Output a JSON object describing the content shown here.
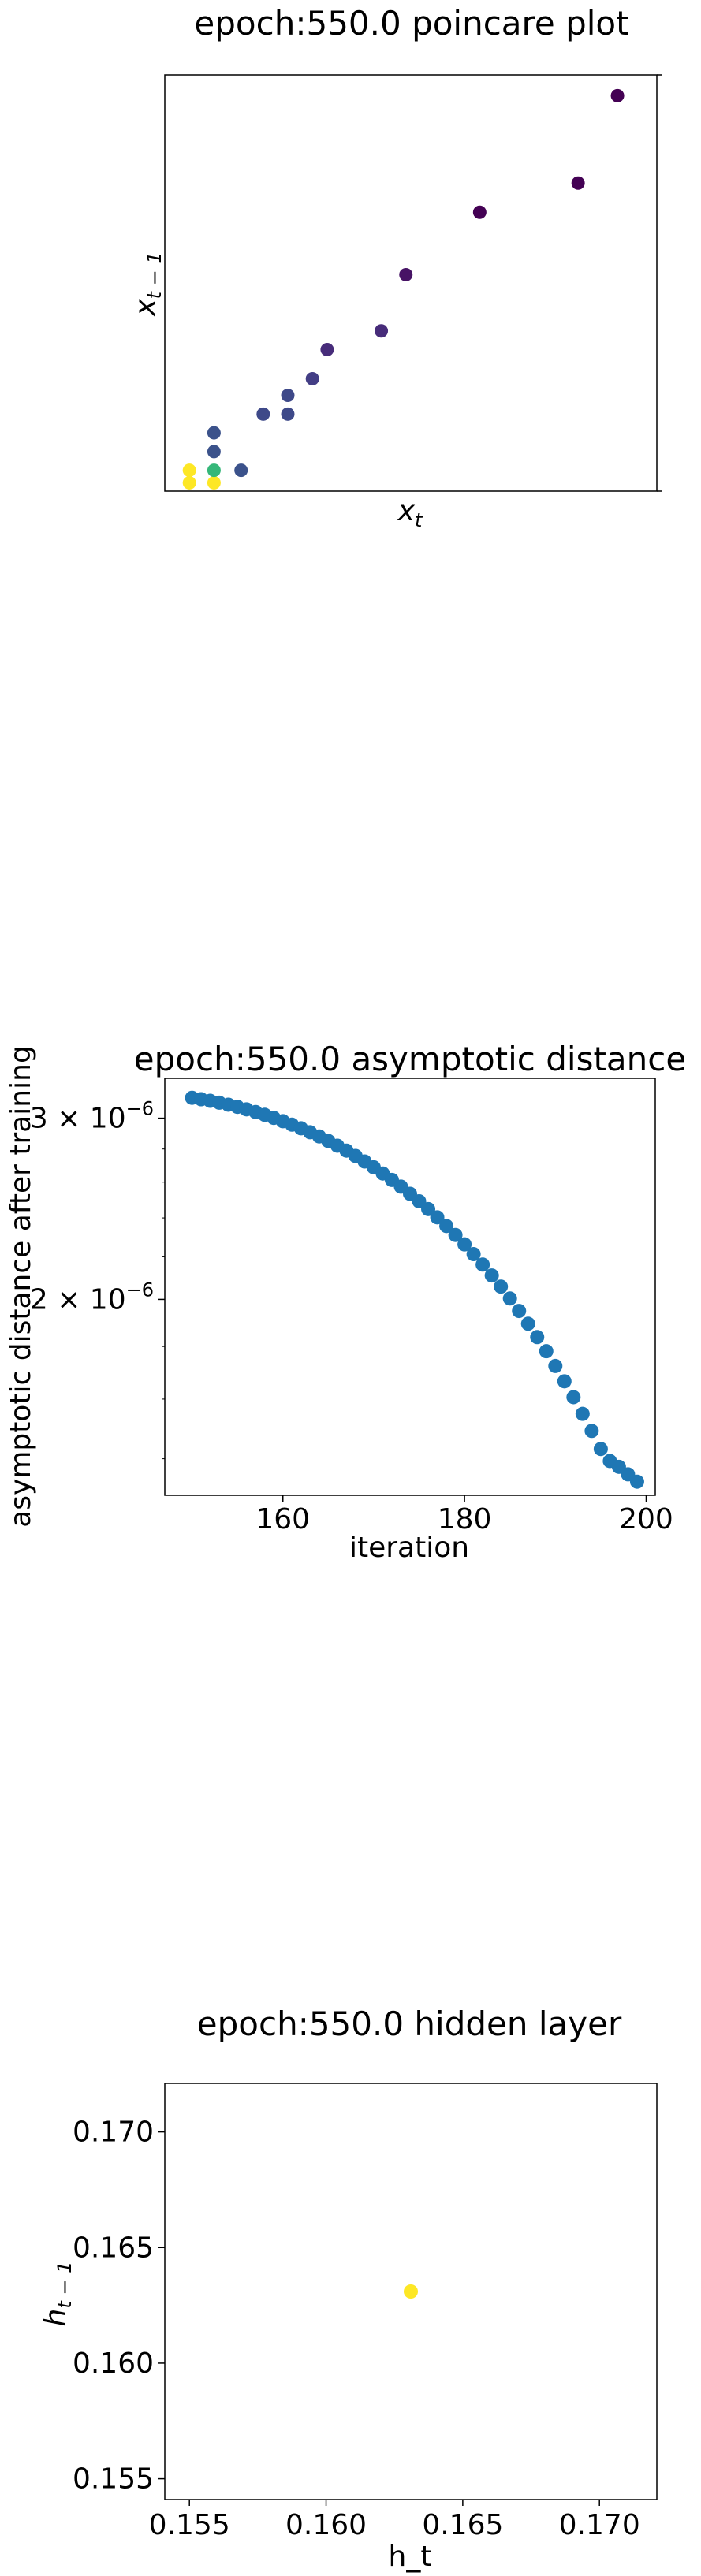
{
  "chart_data": [
    {
      "type": "scatter",
      "title": "epoch:550.0 poincare plot",
      "xlabel": "x_t",
      "ylabel": "x_{t-1}",
      "xticks_shown": false,
      "yticks_shown": false,
      "grid": false,
      "colormap": "viridis",
      "points": [
        {
          "x": 0.05,
          "y": 0.02,
          "color": "#fde725"
        },
        {
          "x": 0.05,
          "y": 0.05,
          "color": "#fde725"
        },
        {
          "x": 0.1,
          "y": 0.02,
          "color": "#fde725"
        },
        {
          "x": 0.1,
          "y": 0.05,
          "color": "#35b779"
        },
        {
          "x": 0.1,
          "y": 0.095,
          "color": "#3b528b"
        },
        {
          "x": 0.1,
          "y": 0.14,
          "color": "#3b528b"
        },
        {
          "x": 0.155,
          "y": 0.05,
          "color": "#3b528b"
        },
        {
          "x": 0.2,
          "y": 0.185,
          "color": "#3e4989"
        },
        {
          "x": 0.25,
          "y": 0.185,
          "color": "#3e4989"
        },
        {
          "x": 0.25,
          "y": 0.23,
          "color": "#3e4989"
        },
        {
          "x": 0.3,
          "y": 0.27,
          "color": "#433e85"
        },
        {
          "x": 0.33,
          "y": 0.34,
          "color": "#472c7a"
        },
        {
          "x": 0.44,
          "y": 0.385,
          "color": "#472c7a"
        },
        {
          "x": 0.49,
          "y": 0.52,
          "color": "#471365"
        },
        {
          "x": 0.64,
          "y": 0.67,
          "color": "#440154"
        },
        {
          "x": 0.84,
          "y": 0.74,
          "color": "#440154"
        },
        {
          "x": 0.92,
          "y": 0.95,
          "color": "#440154"
        }
      ]
    },
    {
      "type": "scatter",
      "title": "epoch:550.0 asymptotic distance",
      "xlabel": "iteration",
      "ylabel": "asymptotic distance after training",
      "yscale": "log",
      "xlim": [
        147,
        201
      ],
      "ylim": [
        1.29e-06,
        3.28e-06
      ],
      "xticks": [
        160,
        180,
        200
      ],
      "yticks": [
        2e-06,
        3e-06
      ],
      "ytick_labels": [
        {
          "mantissa": "2 × 10",
          "exponent": "−6"
        },
        {
          "mantissa": "3 × 10",
          "exponent": "−6"
        }
      ],
      "grid": false,
      "color": "#1f77b4",
      "x_start": 150,
      "x_end": 199,
      "y": [
        3.14e-06,
        3.13e-06,
        3.119e-06,
        3.106e-06,
        3.092e-06,
        3.077e-06,
        3.06e-06,
        3.042e-06,
        3.023e-06,
        3.002e-06,
        2.98e-06,
        2.957e-06,
        2.933e-06,
        2.907e-06,
        2.88e-06,
        2.851e-06,
        2.821e-06,
        2.79e-06,
        2.757e-06,
        2.723e-06,
        2.688e-06,
        2.651e-06,
        2.613e-06,
        2.574e-06,
        2.533e-06,
        2.491e-06,
        2.448e-06,
        2.403e-06,
        2.357e-06,
        2.31e-06,
        2.262e-06,
        2.213e-06,
        2.162e-06,
        2.11e-06,
        2.058e-06,
        2.004e-06,
        1.949e-06,
        1.894e-06,
        1.838e-06,
        1.781e-06,
        1.723e-06,
        1.665e-06,
        1.607e-06,
        1.548e-06,
        1.49e-06,
        1.431e-06,
        1.393e-06,
        1.375e-06,
        1.352e-06,
        1.33e-06
      ]
    },
    {
      "type": "scatter",
      "title": "epoch:550.0 hidden layer",
      "xlabel": "h_t",
      "ylabel": "h_{t-1}",
      "xlim": [
        0.1541,
        0.1721
      ],
      "ylim": [
        0.1541,
        0.1721
      ],
      "xticks": [
        0.155,
        0.16,
        0.165,
        0.17
      ],
      "yticks": [
        0.155,
        0.16,
        0.165,
        0.17
      ],
      "grid": false,
      "points": [
        {
          "x": 0.1631,
          "y": 0.1631,
          "color": "#fde725"
        }
      ]
    }
  ]
}
